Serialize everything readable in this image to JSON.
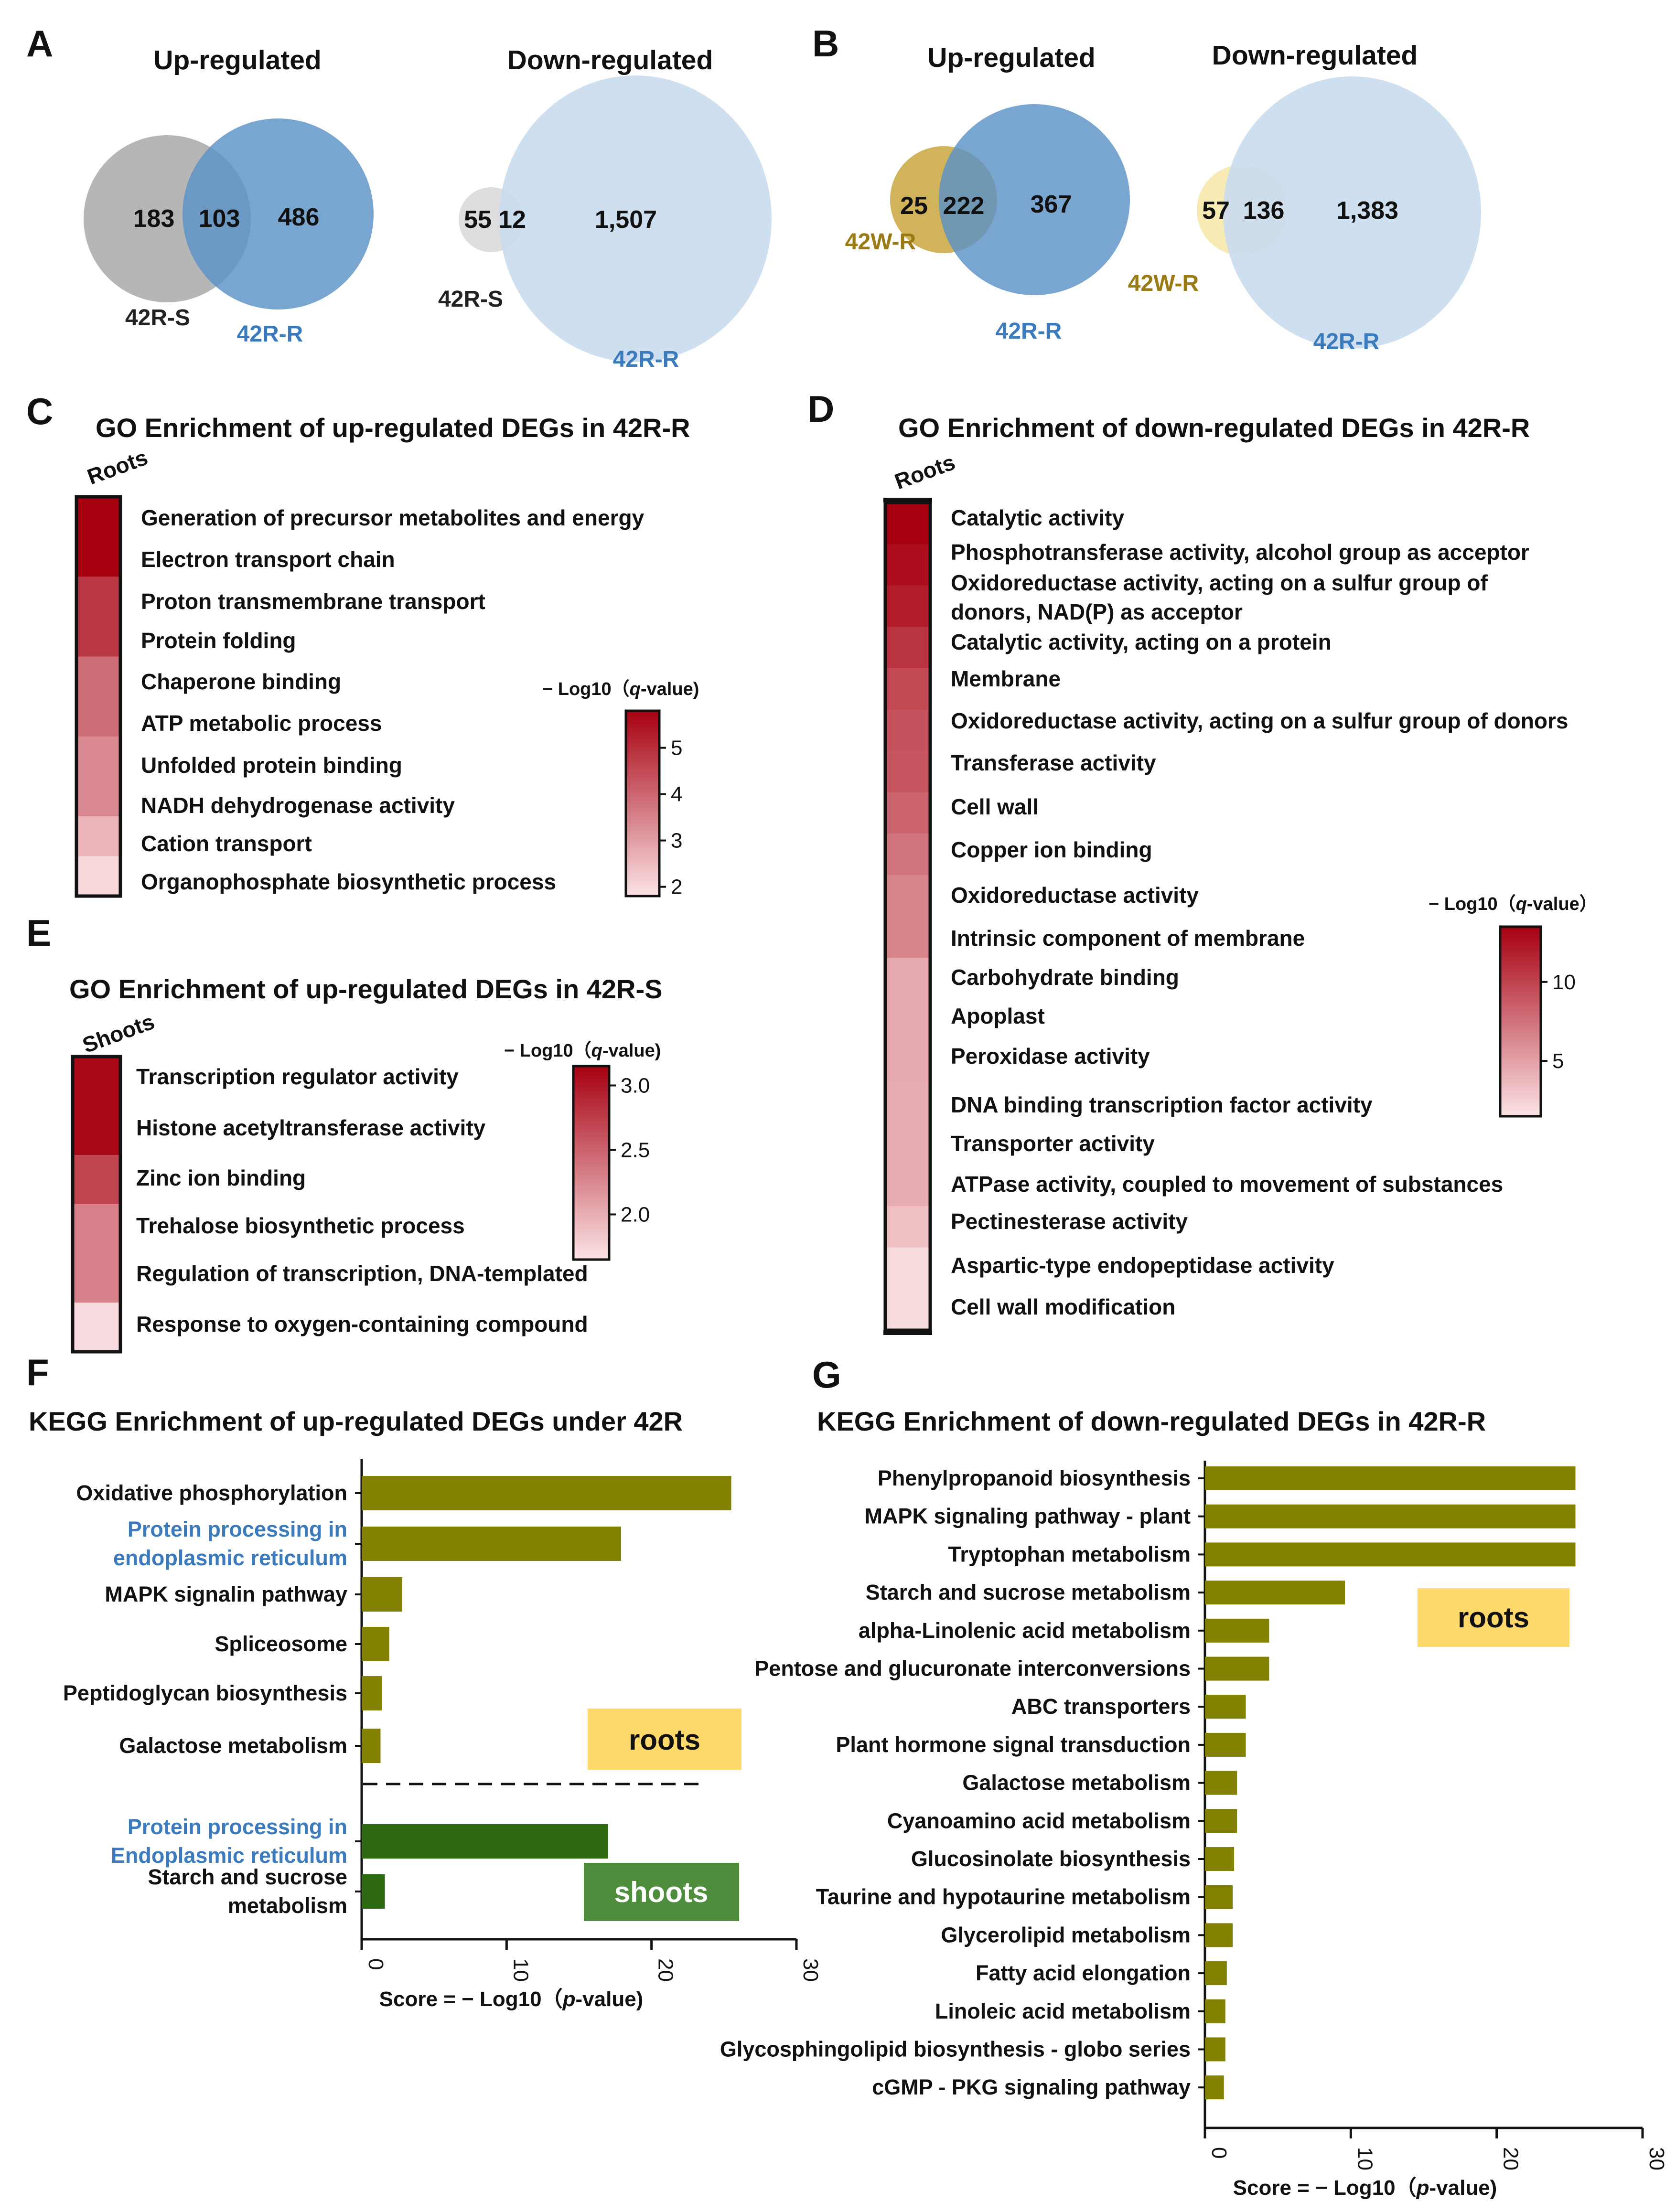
{
  "panels": {
    "A": {
      "label": "A",
      "up": {
        "title": "Up-regulated",
        "left_only": "183",
        "overlap": "103",
        "right_only": "486",
        "left_set": "42R-S",
        "right_set": "42R-R"
      },
      "down": {
        "title": "Down-regulated",
        "left_only": "55",
        "overlap": "12",
        "right_only": "1,507",
        "left_set": "42R-S",
        "right_set": "42R-R"
      }
    },
    "B": {
      "label": "B",
      "up": {
        "title": "Up-regulated",
        "left_only": "25",
        "overlap": "222",
        "right_only": "367",
        "left_set": "42W-R",
        "right_set": "42R-R"
      },
      "down": {
        "title": "Down-regulated",
        "left_only": "57",
        "overlap": "136",
        "right_only": "1,383",
        "left_set": "42W-R",
        "right_set": "42R-R"
      }
    },
    "C": {
      "label": "C",
      "title": "GO Enrichment of up-regulated DEGs in 42R-R",
      "column": "Roots",
      "colorbar_title_prefix": "− Log10（",
      "colorbar_title_q": "q",
      "colorbar_title_suffix": "-value)",
      "colorbar_ticks": [
        "5",
        "4",
        "3",
        "2"
      ],
      "terms": [
        "Generation of precursor metabolites and energy",
        "Electron transport chain",
        "Proton transmembrane transport",
        "Protein folding",
        "Chaperone binding",
        "ATP metabolic process",
        "Unfolded protein binding",
        "NADH dehydrogenase activity",
        "Cation transport",
        "Organophosphate biosynthetic process"
      ]
    },
    "D": {
      "label": "D",
      "title": "GO Enrichment of  down-regulated DEGs in 42R-R",
      "column": "Roots",
      "colorbar_title_prefix": "− Log10（",
      "colorbar_title_q": "q",
      "colorbar_title_suffix": "-value）",
      "colorbar_ticks": [
        "10",
        "5"
      ],
      "terms": [
        "Catalytic activity",
        "Phosphotransferase activity, alcohol group as acceptor",
        "Oxidoreductase activity, acting on a sulfur group of",
        "donors, NAD(P) as acceptor",
        "Catalytic activity, acting on a protein",
        "Membrane",
        "Oxidoreductase activity, acting on a sulfur group of donors",
        "Transferase activity",
        "Cell wall",
        "Copper ion binding",
        "Oxidoreductase activity",
        "Intrinsic component of membrane",
        "Carbohydrate binding",
        "Apoplast",
        "Peroxidase activity",
        "DNA binding transcription factor activity",
        "Transporter activity",
        "ATPase activity, coupled to movement of substances",
        "Pectinesterase activity",
        "Aspartic-type endopeptidase activity",
        "Cell wall modification"
      ]
    },
    "E": {
      "label": "E",
      "title": "GO Enrichment of  up-regulated DEGs in 42R-S",
      "column": "Shoots",
      "colorbar_title_prefix": "− Log10（",
      "colorbar_title_q": "q",
      "colorbar_title_suffix": "-value)",
      "colorbar_ticks": [
        "3.0",
        "2.5",
        "2.0"
      ],
      "terms": [
        "Transcription regulator activity",
        "Histone acetyltransferase activity",
        "Zinc ion binding",
        "Trehalose biosynthetic process",
        "Regulation of transcription, DNA-templated",
        "Response to oxygen-containing compound"
      ]
    },
    "F": {
      "label": "F",
      "title": "KEGG Enrichment of up-regulated  DEGs under 42R",
      "badge_roots": "roots",
      "badge_shoots": "shoots",
      "xlabel_prefix": "Score = − Log10（",
      "xlabel_p": "p",
      "xlabel_suffix": "-value)",
      "x_ticks": [
        "0",
        "10",
        "20",
        "30"
      ]
    },
    "G": {
      "label": "G",
      "title": "KEGG Enrichment of down-regulated  DEGs in 42R-R",
      "badge_roots": "roots",
      "xlabel_prefix": "Score = − Log10（",
      "xlabel_p": "p",
      "xlabel_suffix": "-value)",
      "x_ticks": [
        "0",
        "10",
        "20",
        "30"
      ]
    }
  },
  "colors": {
    "venn_grey": "#9a9a9a",
    "venn_blue": "#5b93c7",
    "venn_lightblue": "#c9dcee",
    "venn_gold": "#c9a640",
    "venn_lightgold": "#f6e6a6",
    "set_42R_S": "#222222",
    "set_42R_R": "#3b7bbd",
    "set_42W_R": "#9a7a13",
    "bar_roots": "#828200",
    "bar_shoots": "#2e6a12",
    "badge_roots_bg": "#fcd96a",
    "badge_shoots_bg": "#4d8d3b",
    "heat_high": "#a60010",
    "heat_low": "#fbe3e5",
    "blue_label": "#3b7bbd"
  },
  "chart_data": [
    {
      "type": "heatmap",
      "panel": "C",
      "title": "GO Enrichment of up-regulated DEGs in 42R-R",
      "column": "Roots",
      "colorbar_label": "− Log10（q-value)",
      "colorbar_range": [
        1.8,
        5.8
      ],
      "rows": [
        "Generation of precursor metabolites and energy",
        "Electron transport chain",
        "Proton transmembrane transport",
        "Protein folding",
        "Chaperone binding",
        "ATP metabolic process",
        "Unfolded protein binding",
        "NADH dehydrogenase activity",
        "Cation transport",
        "Organophosphate biosynthetic process"
      ],
      "values": [
        5.8,
        5.8,
        4.8,
        4.8,
        3.9,
        3.9,
        3.4,
        3.4,
        2.6,
        2.0
      ]
    },
    {
      "type": "heatmap",
      "panel": "D",
      "title": "GO Enrichment of  down-regulated DEGs in 42R-R",
      "column": "Roots",
      "colorbar_label": "− Log10（q-value）",
      "colorbar_range": [
        1.5,
        13.5
      ],
      "rows": [
        "Catalytic activity",
        "Phosphotransferase activity, alcohol group as acceptor",
        "Oxidoreductase activity, acting on a sulfur group of donors, NAD(P) as acceptor",
        "Catalytic activity, acting on a protein",
        "Membrane",
        "Oxidoreductase activity, acting on a sulfur group of donors",
        "Transferase activity",
        "Cell wall",
        "Copper ion binding",
        "Oxidoreductase activity",
        "Intrinsic component of membrane",
        "Carbohydrate binding",
        "Apoplast",
        "Peroxidase activity",
        "DNA binding transcription factor activity",
        "Transporter activity",
        "ATPase activity, coupled to movement of substances",
        "Pectinesterase activity",
        "Aspartic-type endopeptidase activity",
        "Cell wall modification"
      ],
      "values": [
        13.5,
        12.8,
        12.0,
        10.8,
        9.6,
        9.2,
        9.0,
        8.2,
        7.4,
        6.6,
        6.6,
        4.6,
        4.6,
        4.6,
        4.4,
        4.4,
        4.4,
        3.4,
        2.0,
        2.0
      ]
    },
    {
      "type": "heatmap",
      "panel": "E",
      "title": "GO Enrichment of  up-regulated DEGs in 42R-S",
      "column": "Shoots",
      "colorbar_label": "− Log10（q-value)",
      "colorbar_range": [
        1.65,
        3.15
      ],
      "rows": [
        "Transcription regulator activity",
        "Histone acetyltransferase activity",
        "Zinc ion binding",
        "Trehalose biosynthetic process",
        "Regulation of transcription, DNA-templated",
        "Response to oxygen-containing compound"
      ],
      "values": [
        3.1,
        3.1,
        2.7,
        2.3,
        2.3,
        1.7
      ]
    },
    {
      "type": "bar",
      "orientation": "horizontal",
      "panel": "F",
      "title": "KEGG Enrichment of up-regulated  DEGs under 42R",
      "xlabel": "Score = − Log10（p-value)",
      "xlim": [
        0,
        30
      ],
      "series": [
        {
          "name": "roots",
          "categories": [
            "Oxidative phosphorylation",
            "Protein processing in endoplasmic reticulum",
            "MAPK signalin pathway",
            "Spliceosome",
            "Peptidoglycan biosynthesis",
            "Galactose metabolism"
          ],
          "values": [
            25.5,
            17.9,
            2.8,
            1.9,
            1.4,
            1.3
          ]
        },
        {
          "name": "shoots",
          "categories": [
            "Protein processing in Endoplasmic reticulum",
            "Starch and sucrose metabolism"
          ],
          "values": [
            17.0,
            1.6
          ]
        }
      ]
    },
    {
      "type": "bar",
      "orientation": "horizontal",
      "panel": "G",
      "title": "KEGG Enrichment of down-regulated  DEGs in 42R-R",
      "xlabel": "Score = − Log10（p-value)",
      "xlim": [
        0,
        30
      ],
      "series": [
        {
          "name": "roots",
          "categories": [
            "Phenylpropanoid biosynthesis",
            "MAPK signaling pathway - plant",
            "Tryptophan metabolism",
            "Starch and sucrose metabolism",
            "alpha-Linolenic acid metabolism",
            "Pentose and glucuronate interconversions",
            "ABC transporters",
            "Plant hormone signal transduction",
            "Galactose metabolism",
            "Cyanoamino acid metabolism",
            "Glucosinolate biosynthesis",
            "Taurine and hypotaurine metabolism",
            "Glycerolipid metabolism",
            "Fatty acid elongation",
            "Linoleic acid metabolism",
            "Glycosphingolipid biosynthesis - globo series",
            "cGMP - PKG signaling pathway"
          ],
          "values": [
            25.4,
            25.4,
            25.4,
            9.6,
            4.4,
            4.4,
            2.8,
            2.8,
            2.2,
            2.2,
            2.0,
            1.9,
            1.9,
            1.5,
            1.4,
            1.4,
            1.3
          ]
        }
      ]
    }
  ]
}
